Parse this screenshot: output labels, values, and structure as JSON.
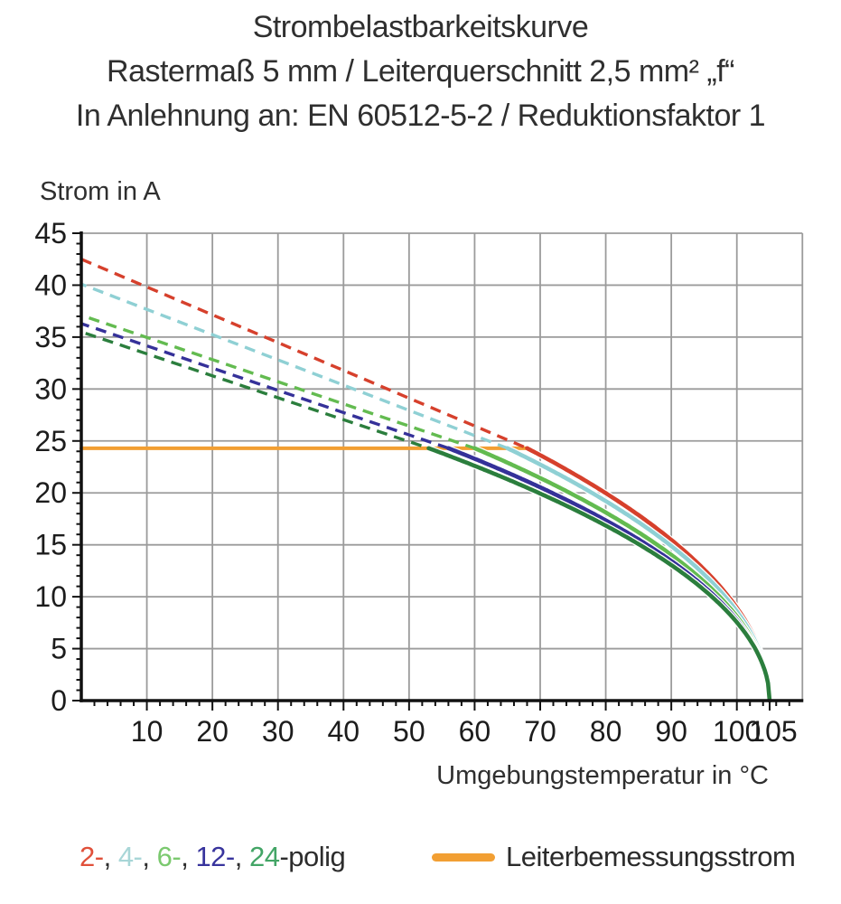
{
  "title": {
    "line1": "Strombelastbarkeitskurve",
    "line2": "Rastermaß 5 mm / Leiterquerschnitt 2,5 mm² „f“",
    "line3": "In Anlehnung an: EN 60512-5-2 / Reduktionsfaktor 1"
  },
  "legend": {
    "pole_parts": [
      {
        "text": "2-",
        "color": "#e0503a"
      },
      {
        "text": ", ",
        "color": "#2d2d2d"
      },
      {
        "text": "4-",
        "color": "#a8d6d7"
      },
      {
        "text": ", ",
        "color": "#2d2d2d"
      },
      {
        "text": "6-",
        "color": "#7bc96f"
      },
      {
        "text": ", ",
        "color": "#2d2d2d"
      },
      {
        "text": "12-",
        "color": "#38349d"
      },
      {
        "text": ", ",
        "color": "#2d2d2d"
      },
      {
        "text": "24",
        "color": "#43a566"
      },
      {
        "text": "-polig",
        "color": "#2d2d2d"
      }
    ],
    "rated_label": "Leiterbemessungsstrom",
    "rated_color": "#f29f33"
  },
  "chart_data": {
    "type": "line",
    "title": "Strombelastbarkeitskurve",
    "xlabel": "Umgebungstemperatur in °C",
    "ylabel": "Strom in A",
    "xlim": [
      0,
      110
    ],
    "ylim": [
      0,
      45
    ],
    "x_major_ticks": [
      10,
      20,
      30,
      40,
      50,
      60,
      70,
      80,
      90,
      100,
      105
    ],
    "x_minor_step": 2,
    "y_major_ticks": [
      0,
      5,
      10,
      15,
      20,
      25,
      30,
      35,
      40,
      45
    ],
    "y_minor_step": 1,
    "grid": true,
    "grid_color": "#9b9b9b",
    "axis_color": "#111111",
    "rated_current_line": {
      "label": "Leiterbemessungsstrom",
      "color": "#f29f33",
      "y": 24.3,
      "x_start": 0,
      "x_end": 68
    },
    "series": [
      {
        "name": "2-polig",
        "color": "#d6402c",
        "dash_offset": 0,
        "dashed_points": [
          [
            0,
            42.5
          ],
          [
            68,
            24.3
          ]
        ],
        "knee": [
          68,
          24.3
        ],
        "end": [
          105,
          0
        ],
        "solid_points": [
          [
            68,
            24.3
          ],
          [
            72,
            22.9
          ],
          [
            76,
            21.5
          ],
          [
            80,
            20.0
          ],
          [
            84,
            18.3
          ],
          [
            88,
            16.5
          ],
          [
            92,
            14.4
          ],
          [
            96,
            12.0
          ],
          [
            100,
            8.9
          ],
          [
            103,
            6.3
          ],
          [
            105,
            0
          ]
        ]
      },
      {
        "name": "4-polig",
        "color": "#8fd0d4",
        "dash_offset": 6,
        "dashed_points": [
          [
            0,
            40.1
          ],
          [
            65,
            24.3
          ]
        ],
        "knee": [
          65,
          24.3
        ],
        "end": [
          105,
          0
        ],
        "solid_points": [
          [
            65,
            24.3
          ],
          [
            70,
            22.7
          ],
          [
            75,
            21.0
          ],
          [
            80,
            19.2
          ],
          [
            85,
            17.2
          ],
          [
            90,
            14.9
          ],
          [
            95,
            12.2
          ],
          [
            100,
            8.6
          ],
          [
            103,
            5.4
          ],
          [
            105,
            0
          ]
        ]
      },
      {
        "name": "6-polig",
        "color": "#63bb50",
        "dash_offset": 11,
        "dashed_points": [
          [
            0,
            37.1
          ],
          [
            60,
            24.3
          ]
        ],
        "knee": [
          60,
          24.3
        ],
        "end": [
          105,
          0
        ],
        "solid_points": [
          [
            60,
            24.3
          ],
          [
            65,
            22.9
          ],
          [
            70,
            21.4
          ],
          [
            75,
            19.8
          ],
          [
            80,
            18.1
          ],
          [
            85,
            16.2
          ],
          [
            90,
            14.0
          ],
          [
            95,
            11.5
          ],
          [
            100,
            8.1
          ],
          [
            103,
            5.1
          ],
          [
            105,
            0
          ]
        ]
      },
      {
        "name": "12-polig",
        "color": "#353199",
        "dash_offset": 3,
        "dashed_points": [
          [
            0,
            36.3
          ],
          [
            56,
            24.3
          ]
        ],
        "knee": [
          56,
          24.3
        ],
        "end": [
          105,
          0
        ],
        "solid_points": [
          [
            56,
            24.3
          ],
          [
            60,
            23.3
          ],
          [
            65,
            22.0
          ],
          [
            70,
            20.5
          ],
          [
            75,
            19.0
          ],
          [
            80,
            17.4
          ],
          [
            85,
            15.5
          ],
          [
            90,
            13.4
          ],
          [
            95,
            11.0
          ],
          [
            100,
            7.8
          ],
          [
            103,
            4.9
          ],
          [
            105,
            0
          ]
        ]
      },
      {
        "name": "24-polig",
        "color": "#2b7e3d",
        "dash_offset": 15,
        "dashed_points": [
          [
            0,
            35.5
          ],
          [
            53,
            24.3
          ]
        ],
        "knee": [
          53,
          24.3
        ],
        "end": [
          105,
          0
        ],
        "solid_points": [
          [
            53,
            24.3
          ],
          [
            58,
            23.1
          ],
          [
            63,
            21.8
          ],
          [
            68,
            20.5
          ],
          [
            73,
            19.1
          ],
          [
            78,
            17.5
          ],
          [
            83,
            15.8
          ],
          [
            88,
            13.9
          ],
          [
            93,
            11.7
          ],
          [
            98,
            8.9
          ],
          [
            102,
            5.8
          ],
          [
            105,
            0
          ]
        ]
      }
    ]
  }
}
